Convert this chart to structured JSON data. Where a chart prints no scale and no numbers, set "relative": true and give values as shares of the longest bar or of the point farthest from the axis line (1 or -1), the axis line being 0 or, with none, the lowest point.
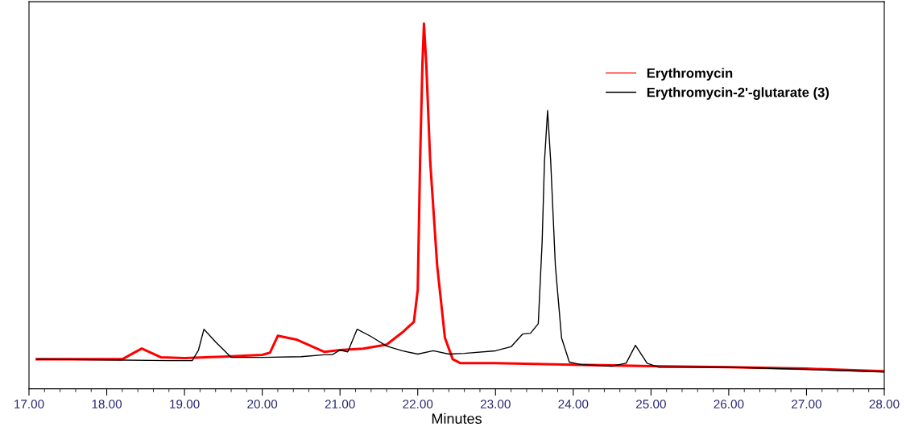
{
  "chart_data": {
    "type": "line",
    "relative": true,
    "xlabel": "Minutes",
    "xlim": [
      17,
      28
    ],
    "xticks": [
      {
        "value": 17,
        "label": "17.00"
      },
      {
        "value": 18,
        "label": "18.00"
      },
      {
        "value": 19,
        "label": "19.00"
      },
      {
        "value": 20,
        "label": "20.00"
      },
      {
        "value": 21,
        "label": "21.00"
      },
      {
        "value": 22,
        "label": "22.00"
      },
      {
        "value": 23,
        "label": "23.00"
      },
      {
        "value": 24,
        "label": "24.00"
      },
      {
        "value": 25,
        "label": "25.00"
      },
      {
        "value": 26,
        "label": "26.00"
      },
      {
        "value": 27,
        "label": "27.00"
      },
      {
        "value": 28,
        "label": "28.00"
      }
    ],
    "tick_labels": "x",
    "grid": false,
    "legend": "top right",
    "marker": "none",
    "line_style": "solid",
    "series": [
      {
        "name": "Erythromycin",
        "color": "#ff0000",
        "x": [
          17.1,
          18.0,
          18.2,
          18.45,
          18.7,
          19.0,
          19.5,
          20.0,
          20.1,
          20.2,
          20.45,
          20.8,
          21.0,
          21.3,
          21.6,
          21.8,
          21.95,
          22.0,
          22.03,
          22.06,
          22.08,
          22.11,
          22.16,
          22.25,
          22.35,
          22.45,
          22.55,
          23.0,
          24.0,
          25.0,
          26.0,
          27.0,
          28.0
        ],
        "values": [
          0.081,
          0.081,
          0.081,
          0.11,
          0.086,
          0.084,
          0.088,
          0.093,
          0.099,
          0.145,
          0.134,
          0.101,
          0.106,
          0.11,
          0.121,
          0.154,
          0.183,
          0.271,
          0.623,
          0.888,
          1.0,
          0.888,
          0.623,
          0.337,
          0.139,
          0.081,
          0.07,
          0.07,
          0.066,
          0.062,
          0.059,
          0.055,
          0.048
        ]
      },
      {
        "name": "Erythromycin-2'-glutarate (3)",
        "color": "#000000",
        "x": [
          17.1,
          18.0,
          18.8,
          19.1,
          19.18,
          19.25,
          19.4,
          19.6,
          20.0,
          20.5,
          20.8,
          20.9,
          21.0,
          21.1,
          21.22,
          21.4,
          21.6,
          21.8,
          22.0,
          22.2,
          22.4,
          22.6,
          23.0,
          23.2,
          23.35,
          23.45,
          23.55,
          23.6,
          23.63,
          23.67,
          23.71,
          23.77,
          23.85,
          23.95,
          24.1,
          24.5,
          24.68,
          24.8,
          24.95,
          25.1,
          26.0,
          27.0,
          28.0
        ],
        "values": [
          0.081,
          0.079,
          0.077,
          0.077,
          0.106,
          0.163,
          0.128,
          0.086,
          0.086,
          0.088,
          0.093,
          0.093,
          0.106,
          0.101,
          0.163,
          0.143,
          0.117,
          0.104,
          0.095,
          0.104,
          0.095,
          0.097,
          0.104,
          0.115,
          0.15,
          0.152,
          0.178,
          0.403,
          0.623,
          0.762,
          0.623,
          0.337,
          0.139,
          0.073,
          0.066,
          0.062,
          0.07,
          0.119,
          0.07,
          0.059,
          0.059,
          0.053,
          0.046
        ]
      }
    ]
  }
}
